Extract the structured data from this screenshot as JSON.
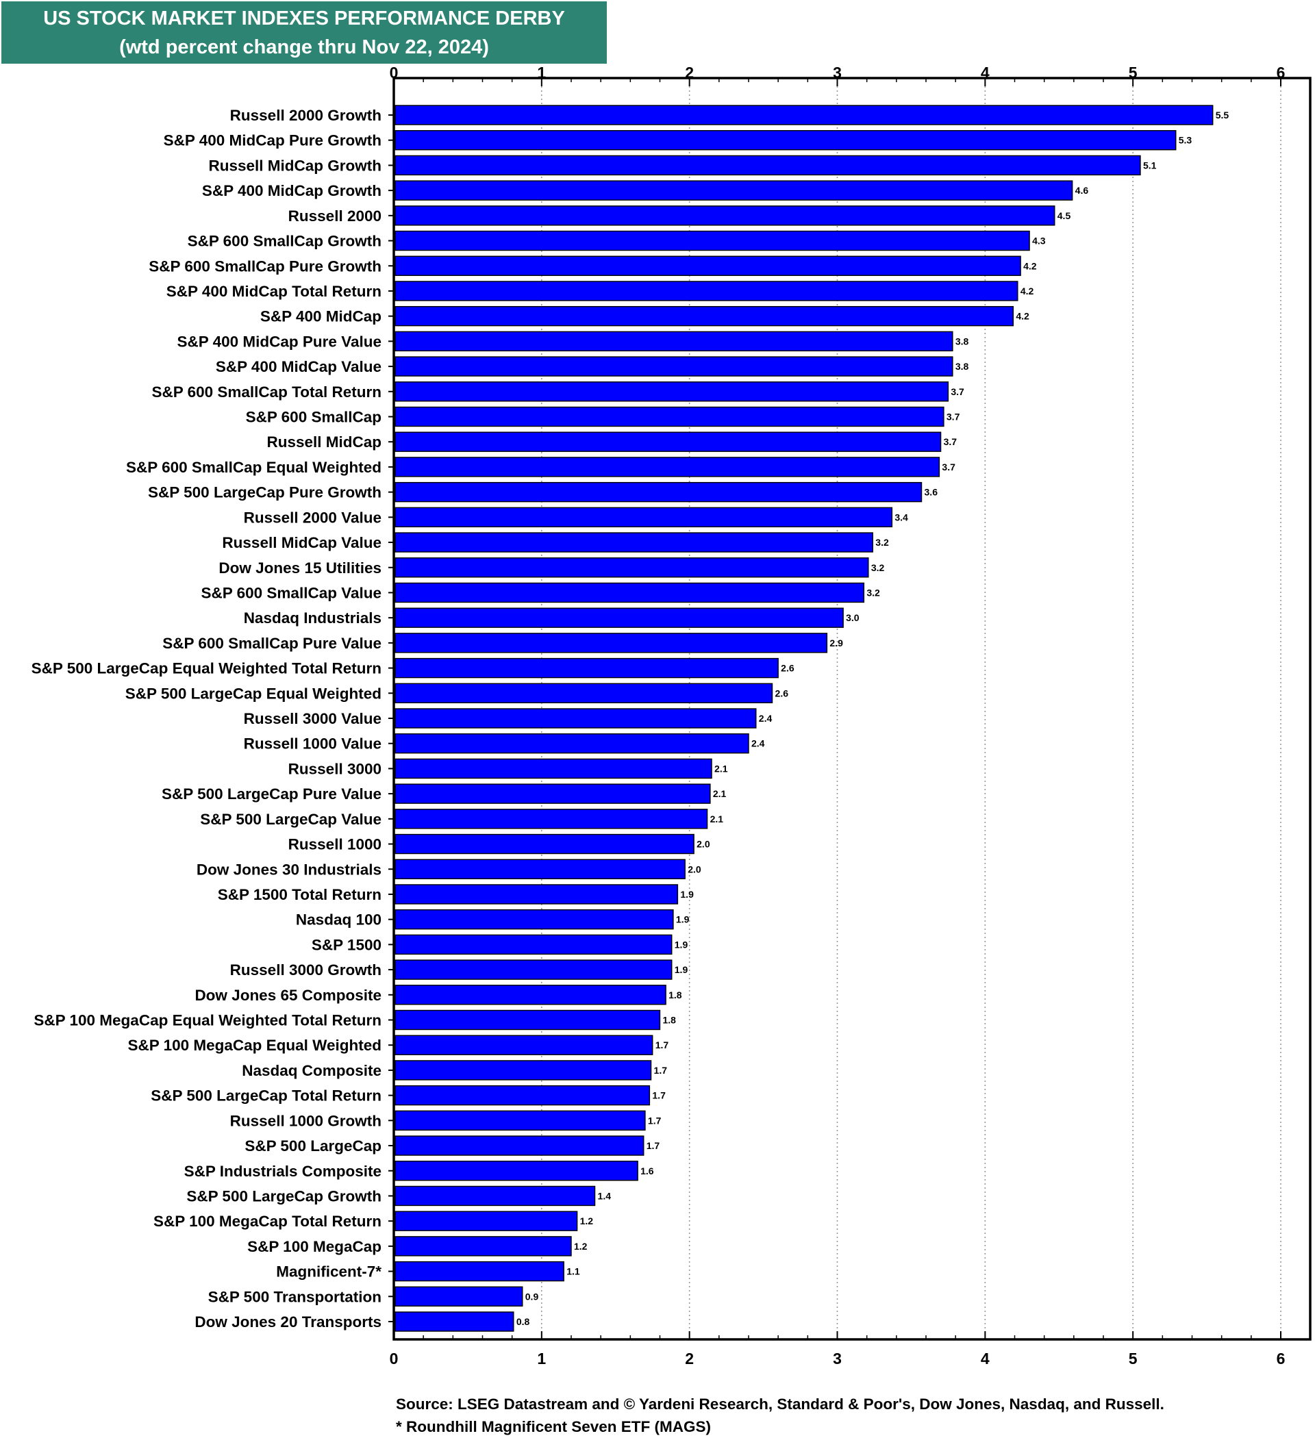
{
  "header": {
    "title": "US STOCK MARKET INDEXES PERFORMANCE DERBY",
    "subtitle": "(wtd percent change thru Nov 22, 2024)"
  },
  "colors": {
    "title_background": "#2e8473",
    "bar_fill": "#0000ff",
    "bar_stroke": "#000000",
    "grid": "#999999"
  },
  "chart_data": {
    "type": "bar",
    "orientation": "horizontal",
    "title": "US STOCK MARKET INDEXES PERFORMANCE DERBY",
    "subtitle": "(wtd percent change thru Nov 22, 2024)",
    "xlabel": "",
    "ylabel": "",
    "xlim": [
      0,
      6.2
    ],
    "xticks": [
      "0",
      "1",
      "2",
      "3",
      "4",
      "5",
      "6"
    ],
    "grid": "vertical dotted",
    "legend": "none",
    "categories": [
      "Russell 2000 Growth",
      "S&P 400 MidCap Pure Growth",
      "Russell MidCap Growth",
      "S&P 400 MidCap Growth",
      "Russell 2000",
      "S&P 600 SmallCap Growth",
      "S&P 600 SmallCap Pure Growth",
      "S&P 400 MidCap Total Return",
      "S&P 400 MidCap",
      "S&P 400 MidCap Pure Value",
      "S&P 400 MidCap Value",
      "S&P 600 SmallCap Total Return",
      "S&P 600 SmallCap",
      "Russell MidCap",
      "S&P 600 SmallCap Equal Weighted",
      "S&P 500 LargeCap Pure Growth",
      "Russell 2000 Value",
      "Russell MidCap Value",
      "Dow Jones 15 Utilities",
      "S&P 600 SmallCap Value",
      "Nasdaq Industrials",
      "S&P 600 SmallCap Pure Value",
      "S&P 500 LargeCap Equal Weighted Total Return",
      "S&P 500 LargeCap Equal Weighted",
      "Russell 3000 Value",
      "Russell 1000 Value",
      "Russell 3000",
      "S&P 500 LargeCap Pure Value",
      "S&P 500 LargeCap Value",
      "Russell 1000",
      "Dow Jones 30 Industrials",
      "S&P 1500 Total Return",
      "Nasdaq 100",
      "S&P 1500",
      "Russell 3000 Growth",
      "Dow Jones 65 Composite",
      "S&P 100 MegaCap Equal Weighted Total Return",
      "S&P 100 MegaCap Equal Weighted",
      "Nasdaq Composite",
      "S&P 500 LargeCap Total Return",
      "Russell 1000 Growth",
      "S&P 500 LargeCap",
      "S&P Industrials Composite",
      "S&P 500 LargeCap Growth",
      "S&P 100 MegaCap Total Return",
      "S&P 100 MegaCap",
      "Magnificent-7*",
      "S&P 500 Transportation",
      "Dow Jones 20 Transports"
    ],
    "values": [
      5.54,
      5.29,
      5.05,
      4.59,
      4.47,
      4.3,
      4.24,
      4.22,
      4.19,
      3.78,
      3.78,
      3.75,
      3.72,
      3.7,
      3.69,
      3.57,
      3.37,
      3.24,
      3.21,
      3.18,
      3.04,
      2.93,
      2.6,
      2.56,
      2.45,
      2.4,
      2.15,
      2.14,
      2.12,
      2.03,
      1.97,
      1.92,
      1.89,
      1.88,
      1.88,
      1.84,
      1.8,
      1.75,
      1.74,
      1.73,
      1.7,
      1.69,
      1.65,
      1.36,
      1.24,
      1.2,
      1.15,
      0.87,
      0.81
    ],
    "value_labels": [
      "5.5",
      "5.3",
      "5.1",
      "4.6",
      "4.5",
      "4.3",
      "4.2",
      "4.2",
      "4.2",
      "3.8",
      "3.8",
      "3.7",
      "3.7",
      "3.7",
      "3.7",
      "3.6",
      "3.4",
      "3.2",
      "3.2",
      "3.2",
      "3.0",
      "2.9",
      "2.6",
      "2.6",
      "2.4",
      "2.4",
      "2.1",
      "2.1",
      "2.1",
      "2.0",
      "2.0",
      "1.9",
      "1.9",
      "1.9",
      "1.9",
      "1.8",
      "1.8",
      "1.7",
      "1.7",
      "1.7",
      "1.7",
      "1.7",
      "1.6",
      "1.4",
      "1.2",
      "1.2",
      "1.1",
      "0.9",
      "0.8"
    ]
  },
  "footer": {
    "source": "Source: LSEG Datastream and © Yardeni Research, Standard & Poor's, Dow Jones, Nasdaq, and Russell.",
    "note": "* Roundhill Magnificent Seven ETF (MAGS)"
  }
}
